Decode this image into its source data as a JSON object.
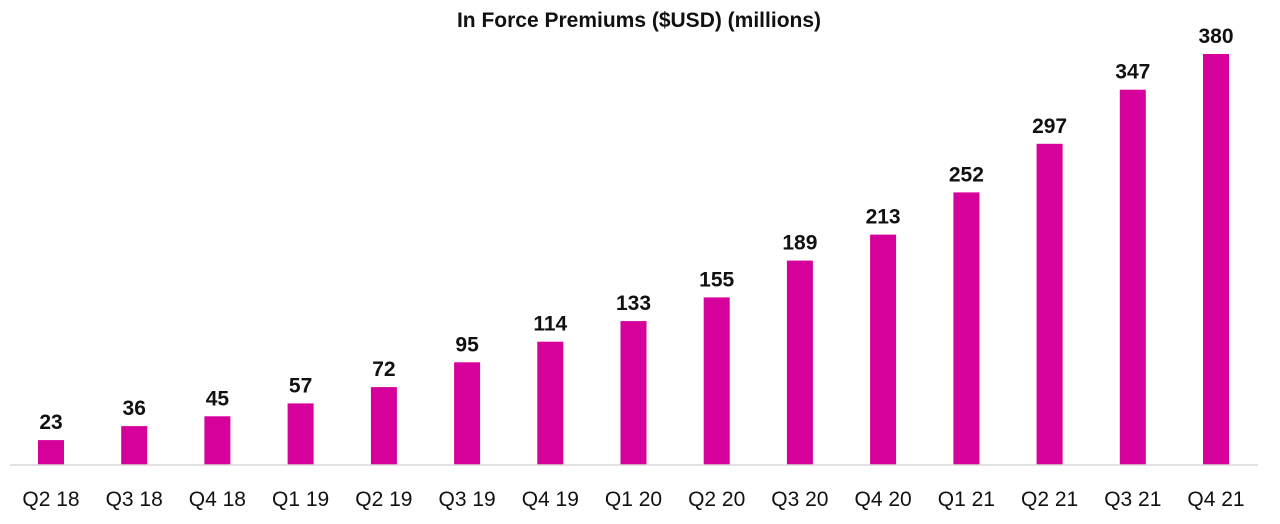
{
  "chart_data": {
    "type": "bar",
    "title": "In Force Premiums ($USD) (millions)",
    "xlabel": "",
    "ylabel": "",
    "categories": [
      "Q2 18",
      "Q3 18",
      "Q4 18",
      "Q1 19",
      "Q2 19",
      "Q3 19",
      "Q4 19",
      "Q1 20",
      "Q2 20",
      "Q3 20",
      "Q4 20",
      "Q1 21",
      "Q2 21",
      "Q3 21",
      "Q4 21"
    ],
    "values": [
      23,
      36,
      45,
      57,
      72,
      95,
      114,
      133,
      155,
      189,
      213,
      252,
      297,
      347,
      380
    ],
    "ylim": [
      0,
      380
    ],
    "grid": false,
    "legend": "none",
    "bar_color": "#D6009A",
    "axis_color": "#D9D9D9"
  }
}
